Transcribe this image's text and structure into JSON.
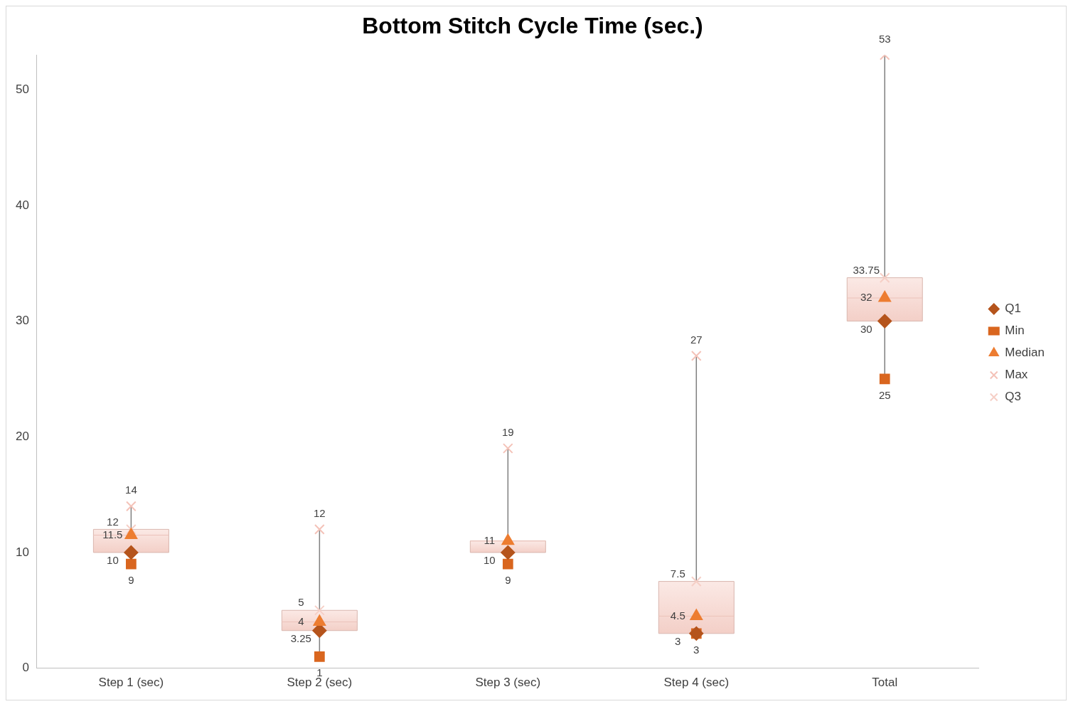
{
  "chart_data": {
    "type": "box",
    "title": "Bottom Stitch Cycle Time (sec.)",
    "categories": [
      "Step 1 (sec)",
      "Step 2 (sec)",
      "Step 3 (sec)",
      "Step 4 (sec)",
      "Total"
    ],
    "boxes": [
      {
        "low": 9,
        "q1": 10,
        "median": 11.5,
        "q3": 12,
        "high": 14
      },
      {
        "low": 1,
        "q1": 3.25,
        "median": 4,
        "q3": 5,
        "high": 12
      },
      {
        "low": 9,
        "q1": 10,
        "median": 11,
        "q3": 11,
        "high": 19
      },
      {
        "low": 3,
        "q1": 3,
        "median": 4.5,
        "q3": 7.5,
        "high": 27
      },
      {
        "low": 25,
        "q1": 30,
        "median": 32,
        "q3": 33.75,
        "high": 53
      }
    ],
    "series": [
      {
        "name": "Q1",
        "type": "scatter",
        "marker": "diamond",
        "color": "#b5541c",
        "values": [
          10,
          3.25,
          10,
          3,
          30
        ],
        "value_labels": [
          "10",
          "3.25",
          "10",
          "3",
          "30"
        ]
      },
      {
        "name": "Min",
        "type": "scatter",
        "marker": "square",
        "color": "#d9661f",
        "values": [
          9,
          1,
          9,
          3,
          25
        ],
        "value_labels": [
          "9",
          "1",
          "9",
          "3",
          "25"
        ]
      },
      {
        "name": "Median",
        "type": "scatter",
        "marker": "triangle",
        "color": "#ed7d31",
        "values": [
          11.5,
          4,
          11,
          4.5,
          32
        ],
        "value_labels": [
          "11.5",
          "4",
          "11",
          "4.5",
          "32"
        ]
      },
      {
        "name": "Max",
        "type": "scatter",
        "marker": "cross",
        "color": "#f4c2b8",
        "values": [
          14,
          12,
          19,
          27,
          53
        ],
        "value_labels": [
          "14",
          "12",
          "19",
          "27",
          "53"
        ]
      },
      {
        "name": "Q3",
        "type": "scatter",
        "marker": "cross",
        "color": "#f6cfc6",
        "values": [
          12,
          5,
          null,
          7.5,
          33.75
        ],
        "value_labels": [
          "12",
          "5",
          null,
          "7.5",
          "33.75"
        ]
      }
    ],
    "ylim": [
      0,
      53
    ],
    "yticks": [
      0,
      10,
      20,
      30,
      40,
      50
    ],
    "grid": false,
    "legend": "right"
  }
}
